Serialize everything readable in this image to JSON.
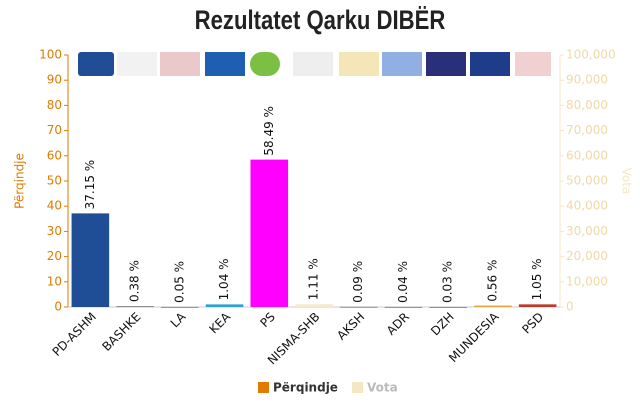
{
  "chart_data": {
    "type": "bar",
    "title": "Rezultatet Qarku DIBËR",
    "categories": [
      "PD-ASHM",
      "BASHKE",
      "LA",
      "KEA",
      "PS",
      "NISMA-SHB",
      "AKSH",
      "ADR",
      "DZH",
      "MUNDESIA",
      "PSD"
    ],
    "series": [
      {
        "name": "Përqindje",
        "color": "#e07b00",
        "axis": "y",
        "bar_colors": [
          "#1f4e96",
          "#8a8a8a",
          "#8a8a8a",
          "#2a9fd8",
          "#ff00ff",
          "#f3e9cf",
          "#8a8a8a",
          "#8a8a8a",
          "#8a8a8a",
          "#e8a040",
          "#c0392b"
        ],
        "values": [
          37.15,
          0.38,
          0.05,
          1.04,
          58.49,
          1.11,
          0.09,
          0.04,
          0.03,
          0.56,
          1.05
        ],
        "value_labels": [
          "37.15 %",
          "0.38 %",
          "0.05 %",
          "1.04 %",
          "58.49 %",
          "1.11 %",
          "0.09 %",
          "0.04 %",
          "0.03 %",
          "0.56 %",
          "1.05 %"
        ]
      },
      {
        "name": "Vota",
        "color": "#f6e6c4",
        "axis": "y2",
        "values": [
          null,
          null,
          null,
          null,
          null,
          null,
          null,
          null,
          null,
          null,
          null
        ]
      }
    ],
    "ylabel": "Përqindje",
    "y2label": "Vota",
    "ylim": [
      0,
      100
    ],
    "yticks": [
      0,
      10,
      20,
      30,
      40,
      50,
      60,
      70,
      80,
      90,
      100
    ],
    "y2lim": [
      0,
      100000
    ],
    "y2ticks": [
      0,
      {
        "value": 10000,
        "label": "10,000"
      },
      {
        "value": 20000,
        "label": "20,000"
      },
      {
        "value": 30000,
        "label": "30,000"
      },
      {
        "value": 40000,
        "label": "40,000"
      },
      {
        "value": 50000,
        "label": "50,000"
      },
      {
        "value": 60000,
        "label": "60,000"
      },
      {
        "value": 70000,
        "label": "70,000"
      },
      {
        "value": 80000,
        "label": "80,000"
      },
      {
        "value": 90000,
        "label": "90,000"
      },
      {
        "value": 100000,
        "label": "100,000"
      }
    ],
    "grid": false,
    "legend": "bottom"
  }
}
